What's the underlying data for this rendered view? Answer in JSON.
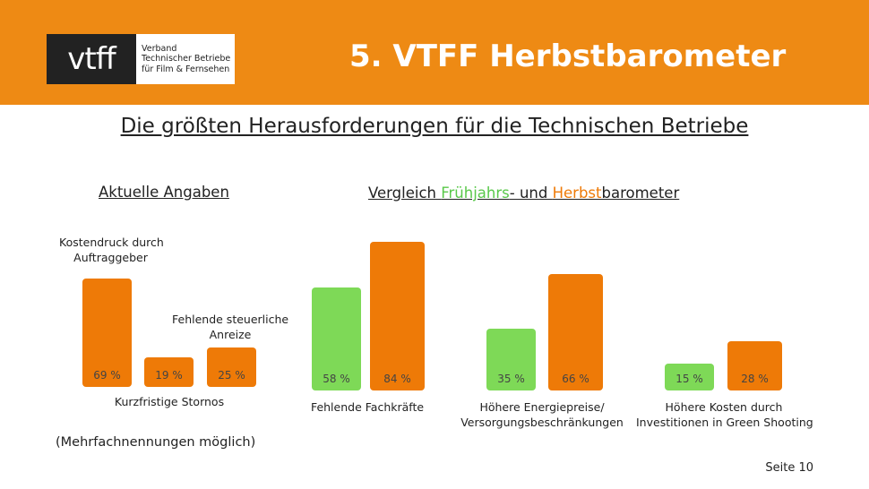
{
  "header": {
    "title": "5. VTFF Herbstbarometer",
    "logo": {
      "mark": "vtff",
      "line1": "Verband",
      "line2": "Technischer Betriebe",
      "line3": "für Film & Fernsehen"
    }
  },
  "subtitle": "Die größten Herausforderungen für die Technischen Betriebe",
  "left_section": {
    "title": "Aktuelle Angaben"
  },
  "right_section": {
    "title_part1": "Vergleich ",
    "title_green": "Frühjahrs",
    "title_part2": "- und ",
    "title_orange": "Herbst",
    "title_part3": "barometer"
  },
  "colors": {
    "orange": "#EE7A07",
    "green": "#7ED957",
    "header": "#EE8A14"
  },
  "chart_data": [
    {
      "type": "bar",
      "unit": "%",
      "categories": [
        "Kostendruck durch Auftraggeber",
        "Kurzfristige Stornos",
        "Fehlende steuerliche Anreize"
      ],
      "values": [
        69,
        19,
        25
      ],
      "value_labels": [
        "69 %",
        "19 %",
        "25 %"
      ]
    },
    {
      "type": "bar",
      "unit": "%",
      "categories": [
        "Fehlende Fachkräfte",
        "Höhere Energiepreise/ Versorgungsbeschränkungen",
        "Höhere Kosten durch Investitionen in Green Shooting"
      ],
      "series": [
        {
          "name": "Frühjahrs",
          "values": [
            58,
            35,
            15
          ],
          "value_labels": [
            "58 %",
            "35 %",
            "15 %"
          ]
        },
        {
          "name": "Herbst",
          "values": [
            84,
            66,
            28
          ],
          "value_labels": [
            "84 %",
            "66 %",
            "28 %"
          ]
        }
      ]
    }
  ],
  "left_labels": {
    "cat1_line1": "Kostendruck durch",
    "cat1_line2": "Auftraggeber",
    "cat2": "Kurzfristige Stornos",
    "cat3_line1": "Fehlende steuerliche",
    "cat3_line2": "Anreize"
  },
  "right_labels": {
    "cat1": "Fehlende Fachkräfte",
    "cat2_line1": "Höhere Energiepreise/",
    "cat2_line2": "Versorgungsbeschränkungen",
    "cat3_line1": "Höhere Kosten durch",
    "cat3_line2": "Investitionen in Green Shooting"
  },
  "note": "(Mehrfachnennungen möglich)",
  "page": "Seite 10"
}
